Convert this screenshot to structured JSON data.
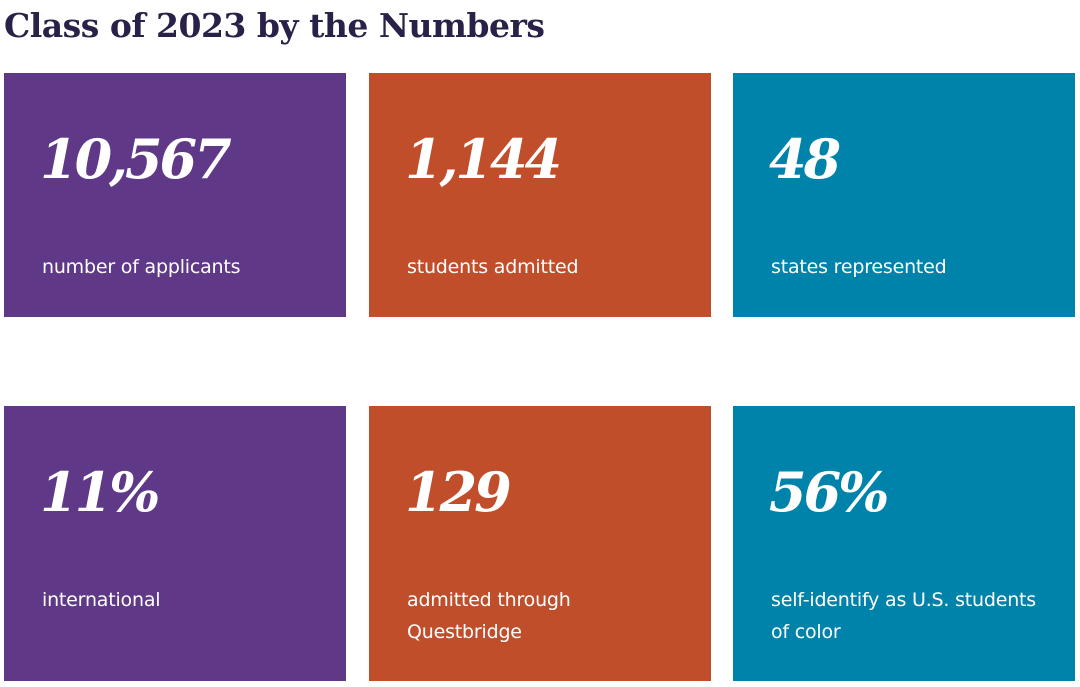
{
  "page": {
    "title": "Class of 2023 by the Numbers"
  },
  "colors": {
    "title": "#2a2148",
    "purple": "#5f3987",
    "orange": "#c14e2b",
    "teal": "#0083ab",
    "card_text": "#ffffff"
  },
  "stats": [
    {
      "value": "10,567",
      "label": "number of applicants"
    },
    {
      "value": "1,144",
      "label": "students admitted"
    },
    {
      "value": "48",
      "label": "states represented"
    },
    {
      "value": "11%",
      "label": "international"
    },
    {
      "value": "129",
      "label": "admitted through Questbridge"
    },
    {
      "value": "56%",
      "label": "self-identify as U.S. students of color"
    }
  ]
}
